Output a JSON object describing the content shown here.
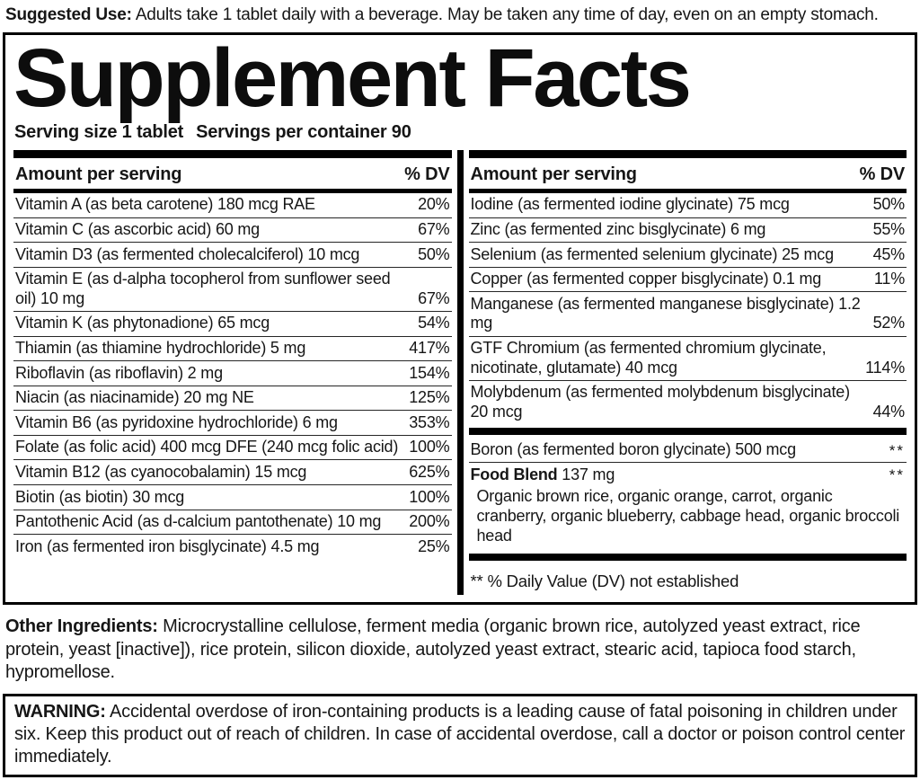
{
  "colors": {
    "ink": "#161616",
    "bar": "#000000",
    "background": "#ffffff"
  },
  "suggested_use": {
    "label": "Suggested Use:",
    "text": "Adults take 1 tablet daily with a beverage. May be taken any time of day, even on an empty stomach."
  },
  "panel": {
    "title": "Supplement Facts",
    "serving_size": "Serving size 1 tablet",
    "servings_per_container": "Servings per container 90",
    "column_header": {
      "amount": "Amount per serving",
      "dv": "% DV"
    },
    "left_rows": [
      {
        "name": "Vitamin A (as beta carotene) 180 mcg RAE",
        "dv": "20%"
      },
      {
        "name": "Vitamin C (as ascorbic acid) 60 mg",
        "dv": "67%"
      },
      {
        "name": "Vitamin D3 (as fermented cholecalciferol) 10 mcg",
        "dv": "50%"
      },
      {
        "name": "Vitamin E (as d-alpha tocopherol from sunflower seed oil) 10 mg",
        "dv": "67%"
      },
      {
        "name": "Vitamin K (as phytonadione) 65 mcg",
        "dv": "54%"
      },
      {
        "name": "Thiamin (as thiamine hydrochloride) 5 mg",
        "dv": "417%"
      },
      {
        "name": "Riboflavin (as riboflavin) 2 mg",
        "dv": "154%"
      },
      {
        "name": "Niacin (as niacinamide) 20 mg NE",
        "dv": "125%"
      },
      {
        "name": "Vitamin B6 (as pyridoxine hydrochloride) 6 mg",
        "dv": "353%"
      },
      {
        "name": "Folate (as folic acid) 400 mcg DFE (240 mcg folic acid)",
        "dv": "100%"
      },
      {
        "name": "Vitamin B12 (as cyanocobalamin) 15 mcg",
        "dv": "625%"
      },
      {
        "name": "Biotin (as biotin) 30 mcg",
        "dv": "100%"
      },
      {
        "name": "Pantothenic Acid (as d-calcium pantothenate) 10 mg",
        "dv": "200%"
      },
      {
        "name": "Iron (as fermented iron bisglycinate) 4.5 mg",
        "dv": "25%"
      }
    ],
    "right_rows": [
      {
        "name": "Iodine (as fermented iodine glycinate) 75 mcg",
        "dv": "50%"
      },
      {
        "name": "Zinc (as fermented zinc bisglycinate) 6 mg",
        "dv": "55%"
      },
      {
        "name": "Selenium (as fermented selenium glycinate) 25 mcg",
        "dv": "45%"
      },
      {
        "name": "Copper (as fermented copper bisglycinate) 0.1 mg",
        "dv": "11%"
      },
      {
        "name": "Manganese (as fermented manganese bisglycinate) 1.2 mg",
        "dv": "52%"
      },
      {
        "name": "GTF Chromium (as fermented chromium glycinate, nicotinate, glutamate) 40 mcg",
        "dv": "114%"
      },
      {
        "name": "Molybdenum (as fermented molybdenum bisglycinate) 20 mcg",
        "dv": "44%"
      }
    ],
    "boron": {
      "name": "Boron (as fermented boron glycinate) 500 mcg",
      "dv": "**"
    },
    "food_blend": {
      "name": "Food Blend",
      "amount": "137 mg",
      "dv": "**",
      "description": "Organic brown rice, organic orange, carrot, organic cranberry, organic blueberry, cabbage head, organic broccoli head"
    },
    "footnote": "** % Daily Value (DV) not established"
  },
  "other_ingredients": {
    "label": "Other Ingredients:",
    "text": "Microcrystalline cellulose, ferment media (organic brown rice, autolyzed yeast extract, rice protein, yeast [inactive]), rice protein, silicon dioxide, autolyzed yeast extract, stearic acid, tapioca food starch, hypromellose."
  },
  "warning": {
    "label": "WARNING:",
    "text": "Accidental overdose of iron-containing products is a leading cause of fatal poisoning in children under six. Keep this product out of reach of children. In case of accidental overdose, call a doctor or poison control center immediately."
  }
}
